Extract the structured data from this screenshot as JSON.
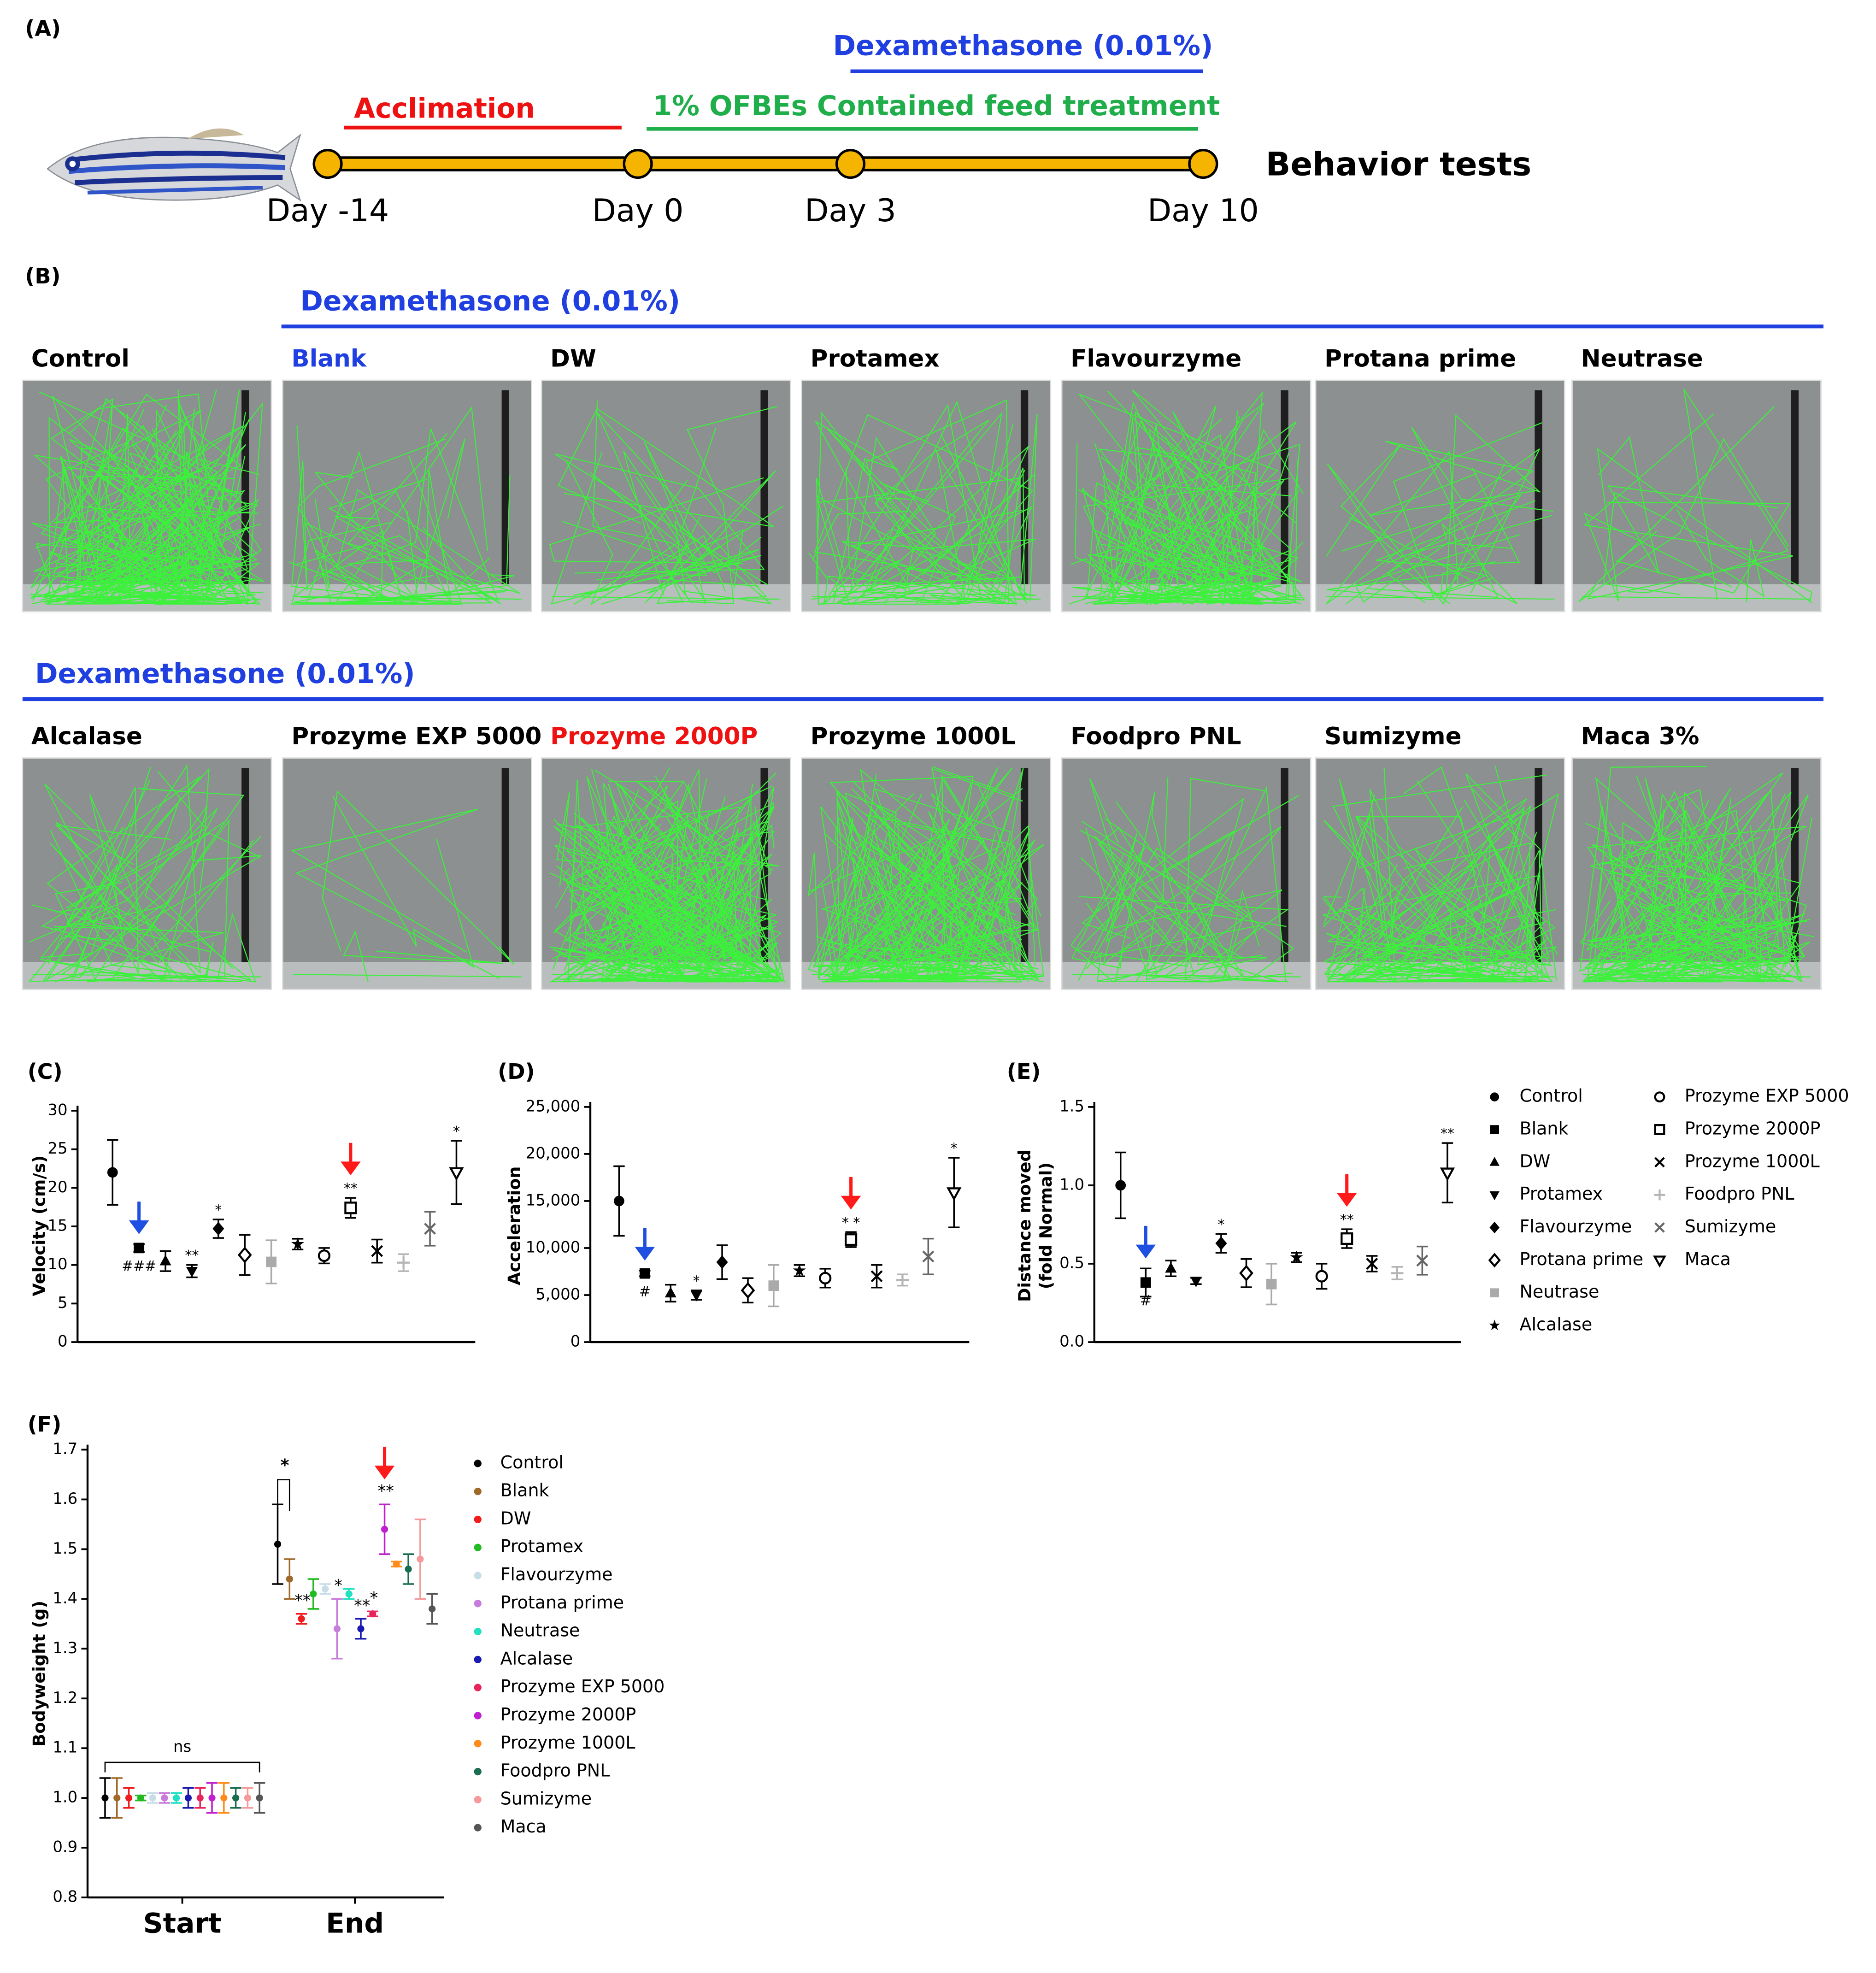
{
  "panel_a": {
    "label": "(A)",
    "treatment": "Dexamethasone (0.01%)",
    "acclimation": "Acclimation",
    "feed": "1% OFBEs Contained feed treatment",
    "endpoint": "Behavior tests",
    "days": [
      "Day -14",
      "Day 0",
      "Day 3",
      "Day 10"
    ]
  },
  "panel_b": {
    "label": "(B)",
    "rows": [
      {
        "treatment": "Dexamethasone (0.01%)",
        "groups": [
          {
            "label": "Control",
            "color": "#000000"
          },
          {
            "label": "Blank",
            "color": "#1f3fe0"
          },
          {
            "label": "DW",
            "color": "#000000"
          },
          {
            "label": "Protamex",
            "color": "#000000"
          },
          {
            "label": "Flavourzyme",
            "color": "#000000"
          },
          {
            "label": "Protana prime",
            "color": "#000000"
          },
          {
            "label": "Neutrase",
            "color": "#000000"
          }
        ]
      },
      {
        "treatment": "Dexamethasone (0.01%)",
        "groups": [
          {
            "label": "Alcalase",
            "color": "#000000"
          },
          {
            "label": "Prozyme EXP 5000",
            "color": "#000000"
          },
          {
            "label": "Prozyme 2000P",
            "color": "#ee1111"
          },
          {
            "label": "Prozyme 1000L",
            "color": "#000000"
          },
          {
            "label": "Foodpro PNL",
            "color": "#000000"
          },
          {
            "label": "Sumizyme",
            "color": "#000000"
          },
          {
            "label": "Maca 3%",
            "color": "#000000"
          }
        ]
      }
    ]
  },
  "chart_data": [
    {
      "type": "errorbar",
      "label": "(C)",
      "ylabel": "Velocity (cm/s)",
      "categories": [
        "Control",
        "Blank",
        "DW",
        "Protamex",
        "Flavourzyme",
        "Protana prime",
        "Neutrase",
        "Alcalase",
        "Prozyme EXP 5000",
        "Prozyme 2000P",
        "Prozyme 1000L",
        "Foodpro PNL",
        "Sumizyme",
        "Maca"
      ],
      "markers": [
        "circle",
        "square",
        "triangle",
        "triangle-down",
        "diamond",
        "diamond-open",
        "square",
        "star",
        "circle-open",
        "square-open",
        "cross",
        "plus",
        "cross",
        "triangle-down-open"
      ],
      "colors": [
        "#000000",
        "#000000",
        "#000000",
        "#000000",
        "#000000",
        "#000000",
        "#aaaaaa",
        "#000000",
        "#000000",
        "#000000",
        "#000000",
        "#b5b5b5",
        "#666666",
        "#000000"
      ],
      "values": [
        22,
        12.2,
        10.5,
        9.2,
        14.7,
        11.3,
        10.4,
        12.7,
        11.2,
        17.4,
        11.8,
        10.3,
        14.7,
        22
      ],
      "errors": [
        4.2,
        0.5,
        1.3,
        0.8,
        1.2,
        2.6,
        2.8,
        0.7,
        1.0,
        1.3,
        1.5,
        1.1,
        2.2,
        4.1
      ],
      "significance": [
        null,
        "###",
        null,
        "**",
        "*",
        null,
        null,
        null,
        null,
        "**",
        null,
        null,
        null,
        "*"
      ],
      "arrow_colors": [
        null,
        "#1f4fe0",
        null,
        null,
        null,
        null,
        null,
        null,
        null,
        "#ff1a1a",
        null,
        null,
        null,
        null
      ],
      "ylim": [
        0,
        30
      ],
      "yticks": [
        0,
        5,
        10,
        15,
        20,
        25,
        30
      ]
    },
    {
      "type": "errorbar",
      "label": "(D)",
      "ylabel": "Acceleration",
      "values": [
        15000,
        7300,
        5200,
        5000,
        8500,
        5500,
        6000,
        7600,
        6800,
        10900,
        7000,
        6600,
        9100,
        15900
      ],
      "errors": [
        3700,
        300,
        900,
        500,
        1800,
        1300,
        2200,
        600,
        1000,
        800,
        1200,
        600,
        1900,
        3700
      ],
      "significance": [
        null,
        "#",
        null,
        "*",
        null,
        null,
        null,
        null,
        null,
        "* *",
        null,
        null,
        null,
        "*"
      ],
      "arrow_colors": [
        null,
        "#1f4fe0",
        null,
        null,
        null,
        null,
        null,
        null,
        null,
        "#ff1a1a",
        null,
        null,
        null,
        null
      ],
      "ylim": [
        0,
        25000
      ],
      "yticks": [
        0,
        {
          "value": 5000,
          "label": "5,000"
        },
        {
          "value": 10000,
          "label": "10,000"
        },
        {
          "value": 15000,
          "label": "15,000"
        },
        {
          "value": 20000,
          "label": "20,000"
        },
        {
          "value": 25000,
          "label": "25,000"
        }
      ]
    },
    {
      "type": "errorbar",
      "label": "(E)",
      "ylabel": [
        "Distance moved",
        "(fold  Normal)"
      ],
      "values": [
        1.0,
        0.38,
        0.47,
        0.39,
        0.63,
        0.44,
        0.37,
        0.54,
        0.42,
        0.66,
        0.5,
        0.44,
        0.52,
        1.08
      ],
      "errors": [
        0.21,
        0.09,
        0.05,
        0.02,
        0.06,
        0.09,
        0.13,
        0.03,
        0.08,
        0.06,
        0.05,
        0.04,
        0.09,
        0.19
      ],
      "significance": [
        null,
        "#",
        null,
        null,
        "*",
        null,
        null,
        null,
        null,
        "**",
        null,
        null,
        null,
        "**"
      ],
      "arrow_colors": [
        null,
        "#1f4fe0",
        null,
        null,
        null,
        null,
        null,
        null,
        null,
        "#ff1a1a",
        null,
        null,
        null,
        null
      ],
      "ylim": [
        0,
        1.5
      ],
      "yticks": [
        {
          "value": 0,
          "label": "0.0"
        },
        0.5,
        {
          "value": 1,
          "label": "1.0"
        },
        1.5
      ]
    },
    {
      "type": "dotplot",
      "label": "(F)",
      "ylabel": "Bodyweight (g)",
      "categories": [
        "Start",
        "End"
      ],
      "start_annotation": "ns",
      "end_bracket": "*",
      "series": [
        {
          "name": "Control",
          "color": "#000000",
          "values": [
            1.0,
            1.51
          ],
          "errors": [
            0.04,
            0.08
          ]
        },
        {
          "name": "Blank",
          "color": "#a0692a",
          "values": [
            1.0,
            1.44
          ],
          "errors": [
            0.04,
            0.04
          ]
        },
        {
          "name": "DW",
          "color": "#ee1c1c",
          "values": [
            1.0,
            1.36
          ],
          "errors": [
            0.02,
            0.01
          ]
        },
        {
          "name": "Protamex",
          "color": "#22bb22",
          "values": [
            1.0,
            1.41
          ],
          "errors": [
            0.005,
            0.03
          ]
        },
        {
          "name": "Flavourzyme",
          "color": "#c8dde8",
          "values": [
            1.0,
            1.42
          ],
          "errors": [
            0.01,
            0.01
          ]
        },
        {
          "name": "Protana prime",
          "color": "#c77ddb",
          "values": [
            1.0,
            1.34
          ],
          "errors": [
            0.01,
            0.06
          ]
        },
        {
          "name": "Neutrase",
          "color": "#22e0c0",
          "values": [
            1.0,
            1.41
          ],
          "errors": [
            0.01,
            0.01
          ]
        },
        {
          "name": "Alcalase",
          "color": "#1a1ab0",
          "values": [
            1.0,
            1.34
          ],
          "errors": [
            0.02,
            0.02
          ]
        },
        {
          "name": "Prozyme EXP 5000",
          "color": "#e8245c",
          "values": [
            1.0,
            1.37
          ],
          "errors": [
            0.02,
            0.005
          ]
        },
        {
          "name": "Prozyme 2000P",
          "color": "#c020d0",
          "values": [
            1.0,
            1.54
          ],
          "errors": [
            0.03,
            0.05
          ]
        },
        {
          "name": "Prozyme 1000L",
          "color": "#ff8c1a",
          "values": [
            1.0,
            1.47
          ],
          "errors": [
            0.03,
            0.005
          ]
        },
        {
          "name": "Foodpro PNL",
          "color": "#1a6e50",
          "values": [
            1.0,
            1.46
          ],
          "errors": [
            0.02,
            0.03
          ]
        },
        {
          "name": "Sumizyme",
          "color": "#f59a9a",
          "values": [
            1.0,
            1.48
          ],
          "errors": [
            0.02,
            0.08
          ]
        },
        {
          "name": "Maca",
          "color": "#555555",
          "values": [
            1.0,
            1.38
          ],
          "errors": [
            0.03,
            0.03
          ]
        }
      ],
      "significance": [
        null,
        null,
        "**",
        null,
        null,
        "*",
        null,
        "**",
        "*",
        "**",
        null,
        null,
        null,
        null
      ],
      "arrow_colors": [
        null,
        null,
        null,
        null,
        null,
        null,
        null,
        null,
        null,
        "#ff1a1a",
        null,
        null,
        null,
        null
      ],
      "ylim": [
        0.8,
        1.7
      ],
      "yticks": [
        0.8,
        0.9,
        {
          "value": 1,
          "label": "1.0"
        },
        1.1,
        1.2,
        1.3,
        1.4,
        1.5,
        1.6,
        1.7
      ]
    }
  ]
}
